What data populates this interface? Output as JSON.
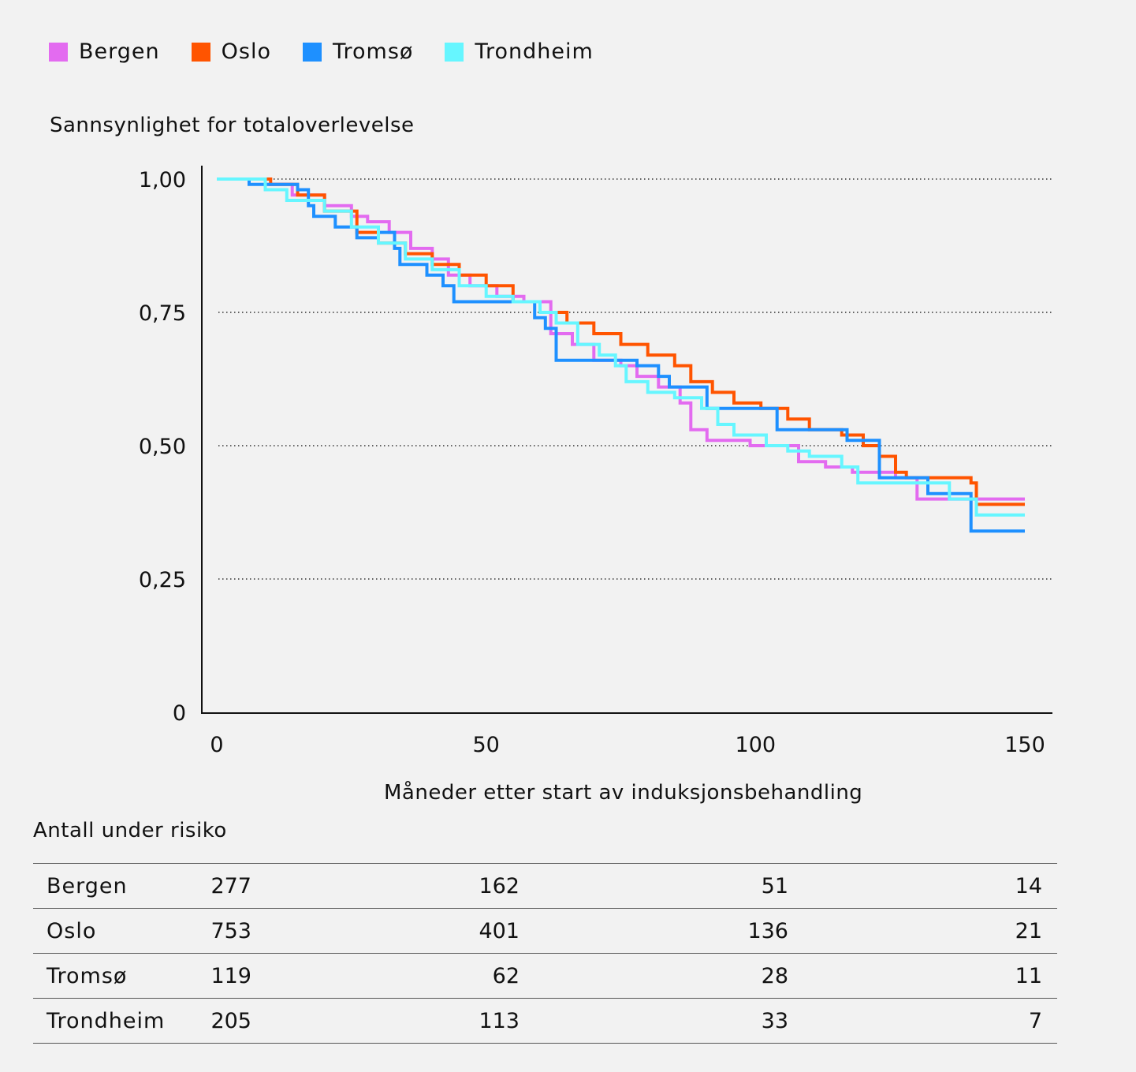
{
  "legend": [
    {
      "label": "Bergen",
      "color": "#e36bf0"
    },
    {
      "label": "Oslo",
      "color": "#ff5400"
    },
    {
      "label": "Tromsø",
      "color": "#1e90ff"
    },
    {
      "label": "Trondheim",
      "color": "#66f6ff"
    }
  ],
  "chart_data": {
    "type": "line",
    "title": "",
    "ylabel": "Sannsynlighet for totaloverlevelse",
    "xlabel": "Måneder etter start av induksjonsbehandling",
    "xlim": [
      0,
      150
    ],
    "ylim": [
      0,
      1
    ],
    "x_ticks": [
      0,
      50,
      100,
      150
    ],
    "x_tick_labels": [
      "0",
      "50",
      "100",
      "150"
    ],
    "y_ticks": [
      0,
      0.25,
      0.5,
      0.75,
      1
    ],
    "y_tick_labels": [
      "0",
      "0,25",
      "0,50",
      "0,75",
      "1,00"
    ],
    "grid": "horizontal dotted",
    "legend_position": "top-left",
    "series": [
      {
        "name": "Bergen",
        "color": "#e36bf0",
        "points": [
          [
            0,
            1.0
          ],
          [
            9,
            0.99
          ],
          [
            14,
            0.97
          ],
          [
            20,
            0.95
          ],
          [
            25,
            0.93
          ],
          [
            28,
            0.92
          ],
          [
            32,
            0.9
          ],
          [
            36,
            0.87
          ],
          [
            40,
            0.85
          ],
          [
            43,
            0.82
          ],
          [
            47,
            0.8
          ],
          [
            52,
            0.78
          ],
          [
            57,
            0.77
          ],
          [
            62,
            0.71
          ],
          [
            66,
            0.69
          ],
          [
            70,
            0.66
          ],
          [
            75,
            0.65
          ],
          [
            78,
            0.63
          ],
          [
            82,
            0.61
          ],
          [
            86,
            0.58
          ],
          [
            88,
            0.53
          ],
          [
            91,
            0.51
          ],
          [
            99,
            0.5
          ],
          [
            104,
            0.5
          ],
          [
            108,
            0.47
          ],
          [
            113,
            0.46
          ],
          [
            118,
            0.45
          ],
          [
            126,
            0.44
          ],
          [
            130,
            0.4
          ],
          [
            150,
            0.4
          ]
        ]
      },
      {
        "name": "Oslo",
        "color": "#ff5400",
        "points": [
          [
            0,
            1.0
          ],
          [
            10,
            0.99
          ],
          [
            15,
            0.97
          ],
          [
            20,
            0.94
          ],
          [
            26,
            0.9
          ],
          [
            30,
            0.88
          ],
          [
            35,
            0.86
          ],
          [
            40,
            0.84
          ],
          [
            45,
            0.82
          ],
          [
            50,
            0.8
          ],
          [
            55,
            0.77
          ],
          [
            60,
            0.75
          ],
          [
            65,
            0.73
          ],
          [
            70,
            0.71
          ],
          [
            75,
            0.69
          ],
          [
            80,
            0.67
          ],
          [
            85,
            0.65
          ],
          [
            88,
            0.62
          ],
          [
            92,
            0.6
          ],
          [
            96,
            0.58
          ],
          [
            101,
            0.57
          ],
          [
            106,
            0.55
          ],
          [
            110,
            0.53
          ],
          [
            116,
            0.52
          ],
          [
            120,
            0.5
          ],
          [
            123,
            0.48
          ],
          [
            126,
            0.45
          ],
          [
            128,
            0.44
          ],
          [
            140,
            0.43
          ],
          [
            141,
            0.39
          ],
          [
            150,
            0.39
          ]
        ]
      },
      {
        "name": "Tromsø",
        "color": "#1e90ff",
        "points": [
          [
            0,
            1.0
          ],
          [
            6,
            0.99
          ],
          [
            15,
            0.98
          ],
          [
            17,
            0.95
          ],
          [
            18,
            0.93
          ],
          [
            22,
            0.91
          ],
          [
            26,
            0.89
          ],
          [
            30,
            0.9
          ],
          [
            33,
            0.87
          ],
          [
            34,
            0.84
          ],
          [
            39,
            0.82
          ],
          [
            42,
            0.8
          ],
          [
            44,
            0.77
          ],
          [
            52,
            0.77
          ],
          [
            57,
            0.77
          ],
          [
            59,
            0.74
          ],
          [
            61,
            0.72
          ],
          [
            63,
            0.66
          ],
          [
            70,
            0.66
          ],
          [
            78,
            0.65
          ],
          [
            82,
            0.63
          ],
          [
            84,
            0.61
          ],
          [
            89,
            0.61
          ],
          [
            91,
            0.57
          ],
          [
            100,
            0.57
          ],
          [
            104,
            0.53
          ],
          [
            114,
            0.53
          ],
          [
            117,
            0.51
          ],
          [
            122,
            0.51
          ],
          [
            123,
            0.44
          ],
          [
            132,
            0.41
          ],
          [
            140,
            0.34
          ],
          [
            150,
            0.34
          ]
        ]
      },
      {
        "name": "Trondheim",
        "color": "#66f6ff",
        "points": [
          [
            0,
            1.0
          ],
          [
            9,
            0.98
          ],
          [
            13,
            0.96
          ],
          [
            20,
            0.94
          ],
          [
            25,
            0.91
          ],
          [
            30,
            0.88
          ],
          [
            35,
            0.85
          ],
          [
            40,
            0.83
          ],
          [
            45,
            0.8
          ],
          [
            50,
            0.78
          ],
          [
            55,
            0.77
          ],
          [
            60,
            0.75
          ],
          [
            63,
            0.73
          ],
          [
            67,
            0.69
          ],
          [
            71,
            0.67
          ],
          [
            74,
            0.65
          ],
          [
            76,
            0.62
          ],
          [
            80,
            0.6
          ],
          [
            85,
            0.59
          ],
          [
            90,
            0.57
          ],
          [
            93,
            0.54
          ],
          [
            96,
            0.52
          ],
          [
            102,
            0.5
          ],
          [
            106,
            0.49
          ],
          [
            110,
            0.48
          ],
          [
            116,
            0.46
          ],
          [
            119,
            0.43
          ],
          [
            128,
            0.43
          ],
          [
            136,
            0.4
          ],
          [
            141,
            0.37
          ],
          [
            150,
            0.37
          ]
        ]
      }
    ]
  },
  "risk_table": {
    "title": "Antall under risiko",
    "rows": [
      {
        "name": "Bergen",
        "values": [
          "277",
          "162",
          "51",
          "14"
        ]
      },
      {
        "name": "Oslo",
        "values": [
          "753",
          "401",
          "136",
          "21"
        ]
      },
      {
        "name": "Tromsø",
        "values": [
          "119",
          "62",
          "28",
          "11"
        ]
      },
      {
        "name": "Trondheim",
        "values": [
          "205",
          "113",
          "33",
          "7"
        ]
      }
    ]
  }
}
